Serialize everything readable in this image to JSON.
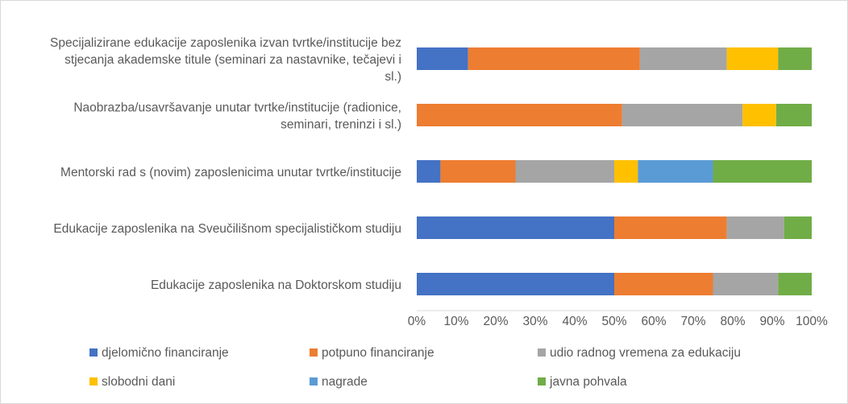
{
  "chart_data": {
    "type": "bar",
    "orientation": "horizontal",
    "stacked": "percent",
    "categories": [
      "Specijalizirane edukacije zaposlenika izvan tvrtke/institucije bez stjecanja akademske titule (seminari za nastavnike, tečajevi i sl.)",
      "Naobrazba/usavršavanje unutar tvrtke/institucije (radionice, seminari, treninzi i sl.)",
      "Mentorski rad s (novim) zaposlenicima unutar tvrtke/institucije",
      "Edukacije zaposlenika na Sveučilišnom specijalističkom studiju",
      "Edukacije zaposlenika na Doktorskom studiju"
    ],
    "category_lines": [
      [
        "Specijalizirane edukacije zaposlenika izvan tvrtke/institucije bez",
        "stjecanja akademske titule (seminari za nastavnike, tečajevi i",
        "sl.)"
      ],
      [
        "Naobrazba/usavršavanje unutar tvrtke/institucije (radionice,",
        "seminari, treninzi i sl.)"
      ],
      [
        "Mentorski rad s (novim) zaposlenicima unutar tvrtke/institucije"
      ],
      [
        "Edukacije zaposlenika na Sveučilišnom specijalističkom studiju"
      ],
      [
        "Edukacije zaposlenika na Doktorskom studiju"
      ]
    ],
    "series": [
      {
        "name": "djelomično financiranje",
        "color": "#4472c4",
        "values": [
          13,
          0,
          6,
          50,
          50
        ]
      },
      {
        "name": "potpuno financiranje",
        "color": "#ed7d31",
        "values": [
          43.5,
          52,
          19,
          28.5,
          25
        ]
      },
      {
        "name": "udio radnog vremena za edukaciju",
        "color": "#a5a5a5",
        "values": [
          22,
          30.5,
          25,
          14.5,
          16.5
        ]
      },
      {
        "name": "slobodni dani",
        "color": "#ffc000",
        "values": [
          13,
          8.5,
          6,
          0,
          0
        ]
      },
      {
        "name": "nagrade",
        "color": "#5b9bd5",
        "values": [
          0,
          0,
          19,
          0,
          0
        ]
      },
      {
        "name": "javna pohvala",
        "color": "#70ad47",
        "values": [
          8.5,
          9,
          25,
          7,
          8.5
        ]
      }
    ],
    "xlim": [
      0,
      100
    ],
    "xticks": [
      "0%",
      "10%",
      "20%",
      "30%",
      "40%",
      "50%",
      "60%",
      "70%",
      "80%",
      "90%",
      "100%"
    ],
    "grid": false,
    "legend_position": "bottom",
    "title": "",
    "xlabel": "",
    "ylabel": ""
  },
  "colors": {
    "frame_border": "#d9d9d9",
    "axis_line": "#d9d9d9",
    "text": "#595959"
  }
}
